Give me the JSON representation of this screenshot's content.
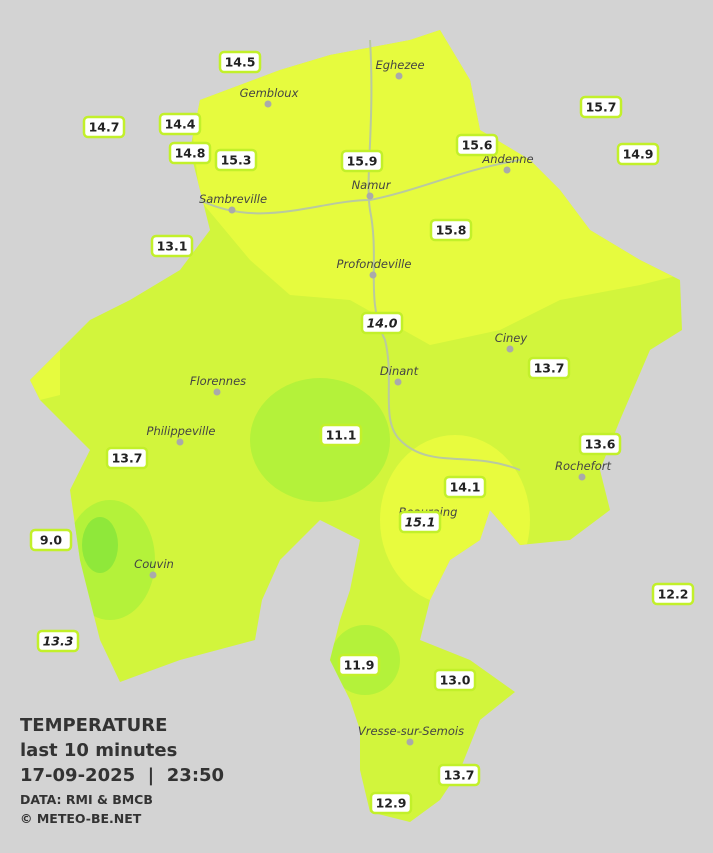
{
  "header": {
    "title": "TEMPERATURE",
    "subtitle": "last 10 minutes",
    "datetime": "17-09-2025  |  23:50",
    "source": "DATA: RMI & BMCB",
    "credit": "© METEO-BE.NET"
  },
  "towns": [
    "Eghezee",
    "Gembloux",
    "Andenne",
    "Namur",
    "Sambreville",
    "Profondeville",
    "Ciney",
    "Dinant",
    "Florennes",
    "Philippeville",
    "Rochefort",
    "Beauraing",
    "Couvin",
    "Vresse-sur-Semois"
  ],
  "readings": [
    "14.5",
    "14.7",
    "14.4",
    "14.8",
    "15.3",
    "15.9",
    "15.6",
    "15.7",
    "14.9",
    "13.1",
    "15.8",
    "14.0",
    "13.7",
    "11.1",
    "13.6",
    "13.7",
    "14.1",
    "15.1",
    "9.0",
    "12.2",
    "13.3",
    "11.9",
    "13.0",
    "13.7",
    "12.9"
  ]
}
